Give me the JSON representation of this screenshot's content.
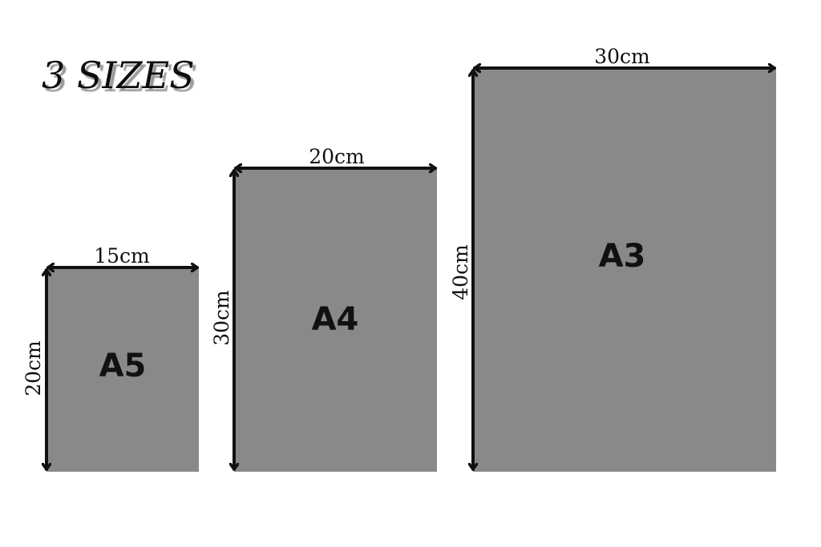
{
  "title": "3 SIZES",
  "fill_color": "#898989",
  "sizes": [
    {
      "name": "A5",
      "width_label": "15cm",
      "height_label": "20cm"
    },
    {
      "name": "A4",
      "width_label": "20cm",
      "height_label": "30cm"
    },
    {
      "name": "A3",
      "width_label": "30cm",
      "height_label": "40cm"
    }
  ]
}
